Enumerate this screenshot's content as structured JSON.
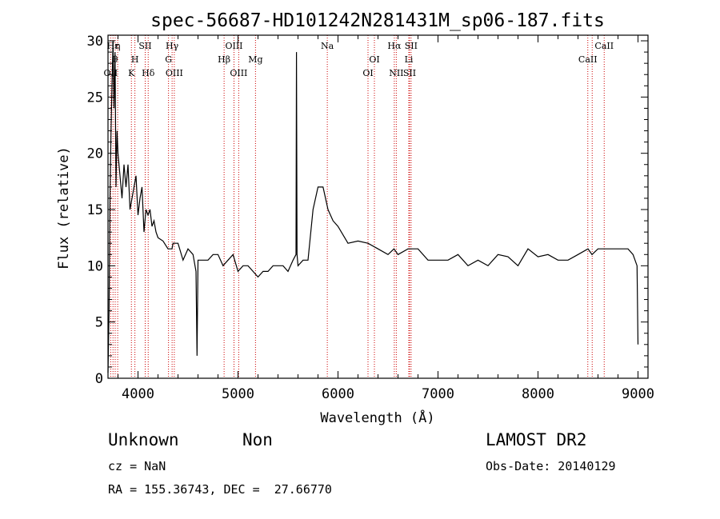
{
  "chart_data": {
    "type": "line",
    "title": "spec-56687-HD101242N281431M_sp06-187.fits",
    "xlabel": "Wavelength (Å)",
    "ylabel": "Flux (relative)",
    "xlim": [
      3700,
      9100
    ],
    "ylim": [
      0,
      30.5
    ],
    "xticks": [
      4000,
      5000,
      6000,
      7000,
      8000,
      9000
    ],
    "yticks": [
      0,
      5,
      10,
      15,
      20,
      25,
      30
    ],
    "grid": false,
    "series": [
      {
        "x": [
          3700,
          3710,
          3720,
          3730,
          3740,
          3750,
          3760,
          3770,
          3780,
          3790,
          3800,
          3820,
          3840,
          3860,
          3880,
          3900,
          3920,
          3940,
          3960,
          3980,
          4000,
          4020,
          4040,
          4060,
          4080,
          4100,
          4120,
          4140,
          4160,
          4180,
          4200,
          4250,
          4300,
          4340,
          4350,
          4400,
          4450,
          4500,
          4550,
          4580,
          4590,
          4600,
          4650,
          4700,
          4750,
          4800,
          4850,
          4900,
          4950,
          5000,
          5050,
          5100,
          5150,
          5200,
          5250,
          5300,
          5350,
          5400,
          5450,
          5500,
          5550,
          5580,
          5585,
          5590,
          5600,
          5650,
          5700,
          5750,
          5800,
          5850,
          5900,
          5950,
          6000,
          6100,
          6200,
          6300,
          6400,
          6500,
          6560,
          6600,
          6700,
          6800,
          6900,
          7000,
          7100,
          7200,
          7300,
          7400,
          7500,
          7600,
          7700,
          7800,
          7900,
          8000,
          8100,
          8200,
          8300,
          8400,
          8500,
          8540,
          8600,
          8700,
          8800,
          8900,
          8950,
          8990,
          9000
        ],
        "values": [
          0.5,
          6,
          16,
          22,
          26,
          30,
          24,
          29,
          17,
          22,
          20,
          18,
          16,
          19,
          17,
          19,
          15,
          16,
          17,
          18,
          14.5,
          16,
          17,
          13,
          15,
          14.5,
          15,
          13.5,
          14,
          13,
          12.5,
          12.2,
          11.5,
          11.5,
          12,
          12,
          10.5,
          11.5,
          11,
          9.5,
          2,
          10.5,
          10.5,
          10.5,
          11,
          11,
          10,
          10.5,
          11,
          9.5,
          10,
          10,
          9.5,
          9,
          9.5,
          9.5,
          10,
          10,
          10,
          9.5,
          10.5,
          11,
          29,
          11,
          10,
          10.5,
          10.5,
          15,
          17,
          17,
          15,
          14,
          13.5,
          12,
          12.2,
          12,
          11.5,
          11,
          11.5,
          11,
          11.5,
          11.5,
          10.5,
          10.5,
          10.5,
          11,
          10,
          10.5,
          10,
          11,
          10.8,
          10,
          11.5,
          10.8,
          11,
          10.5,
          10.5,
          11,
          11.5,
          11,
          11.5,
          11.5,
          11.5,
          11.5,
          11,
          10,
          3
        ]
      }
    ],
    "annotations": [
      {
        "label": "OII",
        "x": 3727,
        "row": 3
      },
      {
        "label": "Hε",
        "x": 3750,
        "row": 1
      },
      {
        "label": "θ",
        "x": 3772,
        "row": 2
      },
      {
        "label": "η",
        "x": 3797,
        "row": 1
      },
      {
        "label": "K",
        "x": 3934,
        "row": 3
      },
      {
        "label": "H",
        "x": 3969,
        "row": 2
      },
      {
        "label": "SII",
        "x": 4072,
        "row": 1
      },
      {
        "label": "Hδ",
        "x": 4102,
        "row": 3
      },
      {
        "label": "Hγ",
        "x": 4341,
        "row": 1
      },
      {
        "label": "G",
        "x": 4305,
        "row": 2
      },
      {
        "label": "OIII",
        "x": 4363,
        "row": 3
      },
      {
        "label": "OIII",
        "x": 4960,
        "row": 1
      },
      {
        "label": "Hβ",
        "x": 4861,
        "row": 2
      },
      {
        "label": "OIII",
        "x": 5007,
        "row": 3
      },
      {
        "label": "Mg",
        "x": 5175,
        "row": 2
      },
      {
        "label": "Na",
        "x": 5893,
        "row": 1
      },
      {
        "label": "OI",
        "x": 6364,
        "row": 2
      },
      {
        "label": "OI",
        "x": 6300,
        "row": 3
      },
      {
        "label": "Hα",
        "x": 6563,
        "row": 1
      },
      {
        "label": "SII",
        "x": 6731,
        "row": 1
      },
      {
        "label": "Li",
        "x": 6708,
        "row": 2
      },
      {
        "label": "NII",
        "x": 6583,
        "row": 3
      },
      {
        "label": "SII",
        "x": 6716,
        "row": 3
      },
      {
        "label": "CaII",
        "x": 8662,
        "row": 1
      },
      {
        "label": "CaII",
        "x": 8498,
        "row": 2
      }
    ],
    "line_positions": [
      3727,
      3750,
      3772,
      3797,
      3934,
      3969,
      4072,
      4102,
      4305,
      4341,
      4363,
      4861,
      4960,
      5007,
      5175,
      5893,
      6300,
      6364,
      6563,
      6583,
      6708,
      6716,
      6731,
      8498,
      8542,
      8662
    ],
    "line_color": "#cc0000",
    "data_color": "#000000"
  },
  "info": {
    "object_class": "Unknown",
    "object_subclass": "Non",
    "cz": "cz = NaN",
    "radec": "RA = 155.36743, DEC =  27.66770",
    "survey": "LAMOST DR2",
    "obs_date": "Obs-Date: 20140129"
  }
}
